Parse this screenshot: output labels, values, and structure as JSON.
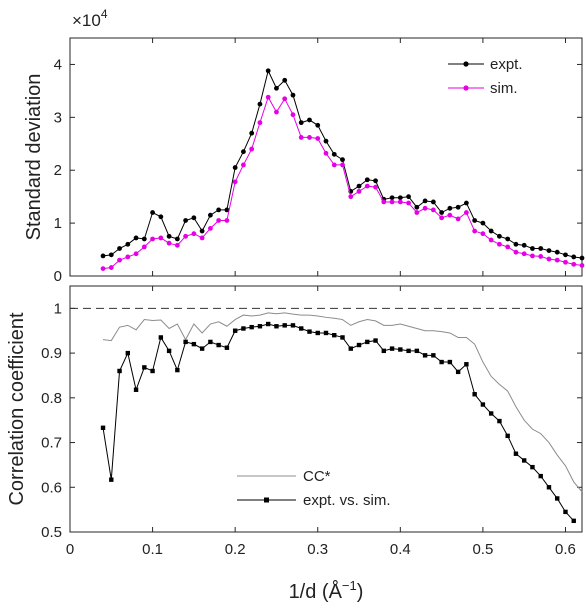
{
  "chart_data": [
    {
      "type": "line",
      "title": "",
      "xlabel": "",
      "ylabel": "Standard deviation",
      "scale_exponent_label": "×10",
      "scale_exponent_power": "4",
      "xlim": [
        0,
        0.62
      ],
      "ylim": [
        0,
        4.5
      ],
      "y_ticks": [
        0,
        1,
        2,
        3,
        4
      ],
      "y_tick_labels": [
        "0",
        "1",
        "2",
        "3",
        "4"
      ],
      "grid": false,
      "legend_position": "top-right",
      "x": [
        0.04,
        0.05,
        0.06,
        0.07,
        0.08,
        0.09,
        0.1,
        0.11,
        0.12,
        0.13,
        0.14,
        0.15,
        0.16,
        0.17,
        0.18,
        0.19,
        0.2,
        0.21,
        0.22,
        0.23,
        0.24,
        0.25,
        0.26,
        0.27,
        0.28,
        0.29,
        0.3,
        0.31,
        0.32,
        0.33,
        0.34,
        0.35,
        0.36,
        0.37,
        0.38,
        0.39,
        0.4,
        0.41,
        0.42,
        0.43,
        0.44,
        0.45,
        0.46,
        0.47,
        0.48,
        0.49,
        0.5,
        0.51,
        0.52,
        0.53,
        0.54,
        0.55,
        0.56,
        0.57,
        0.58,
        0.59,
        0.6,
        0.61,
        0.62
      ],
      "series": [
        {
          "name": "expt.",
          "color": "#000000",
          "values": [
            0.38,
            0.4,
            0.52,
            0.6,
            0.72,
            0.7,
            1.2,
            1.12,
            0.75,
            0.7,
            1.05,
            1.1,
            0.85,
            1.15,
            1.25,
            1.25,
            2.05,
            2.35,
            2.7,
            3.25,
            3.88,
            3.55,
            3.7,
            3.42,
            2.9,
            2.95,
            2.85,
            2.55,
            2.3,
            2.2,
            1.6,
            1.7,
            1.82,
            1.8,
            1.45,
            1.48,
            1.48,
            1.5,
            1.3,
            1.42,
            1.4,
            1.2,
            1.28,
            1.3,
            1.38,
            1.05,
            1.0,
            0.85,
            0.75,
            0.7,
            0.6,
            0.58,
            0.52,
            0.52,
            0.48,
            0.45,
            0.4,
            0.36,
            0.34
          ]
        },
        {
          "name": "sim.",
          "color": "#e600e6",
          "values": [
            0.14,
            0.16,
            0.3,
            0.36,
            0.42,
            0.55,
            0.7,
            0.72,
            0.62,
            0.58,
            0.75,
            0.8,
            0.72,
            0.9,
            1.05,
            1.05,
            1.78,
            2.1,
            2.4,
            2.9,
            3.38,
            3.1,
            3.35,
            3.05,
            2.62,
            2.62,
            2.6,
            2.32,
            2.1,
            2.1,
            1.5,
            1.6,
            1.7,
            1.68,
            1.4,
            1.4,
            1.4,
            1.38,
            1.2,
            1.28,
            1.25,
            1.1,
            1.15,
            1.08,
            1.2,
            0.85,
            0.8,
            0.68,
            0.6,
            0.55,
            0.45,
            0.42,
            0.38,
            0.37,
            0.32,
            0.3,
            0.26,
            0.22,
            0.2
          ]
        }
      ]
    },
    {
      "type": "line",
      "title": "",
      "xlabel": "1/d (Å",
      "xlabel_superscript": "−1",
      "xlabel_suffix": ")",
      "ylabel": "Correlation coefficient",
      "xlim": [
        0,
        0.62
      ],
      "ylim": [
        0.5,
        1.05
      ],
      "x_ticks": [
        0,
        0.1,
        0.2,
        0.3,
        0.4,
        0.5,
        0.6
      ],
      "x_tick_labels": [
        "0",
        "0.1",
        "0.2",
        "0.3",
        "0.4",
        "0.5",
        "0.6"
      ],
      "y_ticks": [
        0.5,
        0.6,
        0.7,
        0.8,
        0.9,
        1
      ],
      "y_tick_labels": [
        "0.5",
        "0.6",
        "0.7",
        "0.8",
        "0.9",
        "1"
      ],
      "reference_line": 1.0,
      "grid": false,
      "legend_position": "bottom-center",
      "series": [
        {
          "name": "CC*",
          "color": "#8c8c8c",
          "x": [
            0.04,
            0.05,
            0.06,
            0.07,
            0.08,
            0.09,
            0.1,
            0.11,
            0.12,
            0.13,
            0.14,
            0.15,
            0.16,
            0.17,
            0.18,
            0.19,
            0.2,
            0.21,
            0.22,
            0.23,
            0.24,
            0.25,
            0.26,
            0.27,
            0.28,
            0.29,
            0.3,
            0.31,
            0.32,
            0.33,
            0.34,
            0.35,
            0.36,
            0.37,
            0.38,
            0.39,
            0.4,
            0.41,
            0.42,
            0.43,
            0.44,
            0.45,
            0.46,
            0.47,
            0.48,
            0.49,
            0.5,
            0.51,
            0.52,
            0.53,
            0.54,
            0.55,
            0.56,
            0.57,
            0.58,
            0.59,
            0.6,
            0.61,
            0.62
          ],
          "values": [
            0.93,
            0.928,
            0.958,
            0.962,
            0.952,
            0.975,
            0.973,
            0.974,
            0.955,
            0.965,
            0.93,
            0.965,
            0.945,
            0.965,
            0.97,
            0.96,
            0.975,
            0.985,
            0.983,
            0.985,
            0.99,
            0.988,
            0.99,
            0.987,
            0.985,
            0.985,
            0.983,
            0.98,
            0.978,
            0.975,
            0.962,
            0.97,
            0.975,
            0.972,
            0.962,
            0.962,
            0.965,
            0.96,
            0.955,
            0.95,
            0.95,
            0.948,
            0.945,
            0.935,
            0.935,
            0.92,
            0.88,
            0.848,
            0.83,
            0.815,
            0.78,
            0.75,
            0.73,
            0.72,
            0.7,
            0.672,
            0.648,
            0.612,
            0.59
          ]
        },
        {
          "name": "expt. vs. sim.",
          "color": "#000000",
          "x": [
            0.04,
            0.05,
            0.06,
            0.07,
            0.08,
            0.09,
            0.1,
            0.11,
            0.12,
            0.13,
            0.14,
            0.15,
            0.16,
            0.17,
            0.18,
            0.19,
            0.2,
            0.21,
            0.22,
            0.23,
            0.24,
            0.25,
            0.26,
            0.27,
            0.28,
            0.29,
            0.3,
            0.31,
            0.32,
            0.33,
            0.34,
            0.35,
            0.36,
            0.37,
            0.38,
            0.39,
            0.4,
            0.41,
            0.42,
            0.43,
            0.44,
            0.45,
            0.46,
            0.47,
            0.48,
            0.49,
            0.5,
            0.51,
            0.52,
            0.53,
            0.54,
            0.55,
            0.56,
            0.57,
            0.58,
            0.59,
            0.6,
            0.61
          ],
          "values": [
            0.733,
            0.617,
            0.86,
            0.9,
            0.818,
            0.868,
            0.86,
            0.935,
            0.905,
            0.862,
            0.925,
            0.92,
            0.91,
            0.925,
            0.918,
            0.912,
            0.95,
            0.955,
            0.958,
            0.96,
            0.965,
            0.96,
            0.962,
            0.962,
            0.955,
            0.948,
            0.945,
            0.945,
            0.94,
            0.935,
            0.91,
            0.918,
            0.925,
            0.928,
            0.905,
            0.91,
            0.908,
            0.905,
            0.905,
            0.895,
            0.895,
            0.88,
            0.88,
            0.858,
            0.875,
            0.808,
            0.785,
            0.765,
            0.748,
            0.715,
            0.675,
            0.66,
            0.645,
            0.625,
            0.6,
            0.575,
            0.545,
            0.525
          ]
        }
      ]
    }
  ]
}
